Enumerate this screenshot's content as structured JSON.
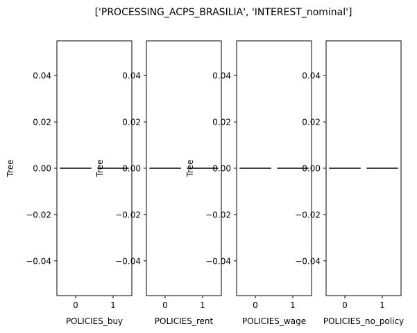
{
  "figure": {
    "suptitle": "['PROCESSING_ACPS_BRASILIA', 'INTEREST_nominal']"
  },
  "colors": {
    "background": "#ffffff",
    "axes": "#000000",
    "data_line": "#3d3d3d"
  },
  "chart_data": [
    {
      "type": "bar",
      "title": "",
      "xlabel": "POLICIES_buy",
      "ylabel": "Tree",
      "categories": [
        "0",
        "1"
      ],
      "values": [
        0.0,
        0.0
      ],
      "ylim": [
        -0.055,
        0.055
      ],
      "yticks": [
        -0.04,
        -0.02,
        0.0,
        0.02,
        0.04
      ],
      "ytick_labels": [
        "−0.04",
        "−0.02",
        "0.00",
        "0.02",
        "0.04"
      ],
      "grid": false
    },
    {
      "type": "bar",
      "title": "",
      "xlabel": "POLICIES_rent",
      "ylabel": "Tree",
      "categories": [
        "0",
        "1"
      ],
      "values": [
        0.0,
        0.0
      ],
      "ylim": [
        -0.055,
        0.055
      ],
      "yticks": [
        -0.04,
        -0.02,
        0.0,
        0.02,
        0.04
      ],
      "ytick_labels": [
        "−0.04",
        "−0.02",
        "0.00",
        "0.02",
        "0.04"
      ],
      "grid": false
    },
    {
      "type": "bar",
      "title": "",
      "xlabel": "POLICIES_wage",
      "ylabel": "Tree",
      "categories": [
        "0",
        "1"
      ],
      "values": [
        0.0,
        0.0
      ],
      "ylim": [
        -0.055,
        0.055
      ],
      "yticks": [
        -0.04,
        -0.02,
        0.0,
        0.02,
        0.04
      ],
      "ytick_labels": [
        "−0.04",
        "−0.02",
        "0.00",
        "0.02",
        "0.04"
      ],
      "grid": false
    },
    {
      "type": "bar",
      "title": "",
      "xlabel": "POLICIES_no_policy",
      "ylabel": "",
      "categories": [
        "0",
        "1"
      ],
      "values": [
        0.0,
        0.0
      ],
      "ylim": [
        -0.055,
        0.055
      ],
      "yticks": [
        -0.04,
        -0.02,
        0.0,
        0.02,
        0.04
      ],
      "ytick_labels": [
        "−0.04",
        "−0.02",
        "0.00",
        "0.02",
        "0.04"
      ],
      "grid": false
    }
  ]
}
